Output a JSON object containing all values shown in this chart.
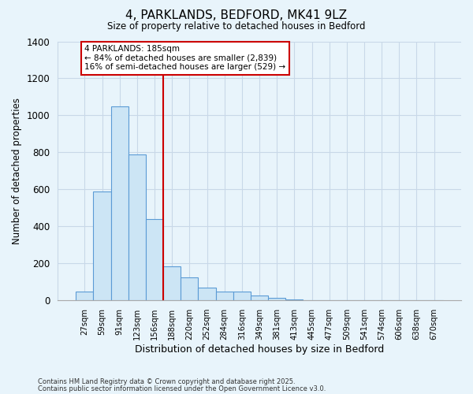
{
  "title": "4, PARKLANDS, BEDFORD, MK41 9LZ",
  "subtitle": "Size of property relative to detached houses in Bedford",
  "xlabel": "Distribution of detached houses by size in Bedford",
  "ylabel": "Number of detached properties",
  "bar_labels": [
    "27sqm",
    "59sqm",
    "91sqm",
    "123sqm",
    "156sqm",
    "188sqm",
    "220sqm",
    "252sqm",
    "284sqm",
    "316sqm",
    "349sqm",
    "381sqm",
    "413sqm",
    "445sqm",
    "477sqm",
    "509sqm",
    "541sqm",
    "574sqm",
    "606sqm",
    "638sqm",
    "670sqm"
  ],
  "bar_values": [
    50,
    590,
    1050,
    790,
    440,
    185,
    125,
    70,
    50,
    50,
    25,
    15,
    5,
    2,
    1,
    0,
    0,
    0,
    0,
    0,
    3
  ],
  "bar_color": "#cce5f5",
  "bar_edge_color": "#5b9bd5",
  "vline_color": "#cc0000",
  "annotation_title": "4 PARKLANDS: 185sqm",
  "annotation_line1": "← 84% of detached houses are smaller (2,839)",
  "annotation_line2": "16% of semi-detached houses are larger (529) →",
  "annotation_box_color": "#ffffff",
  "annotation_box_edge": "#cc0000",
  "ylim": [
    0,
    1400
  ],
  "grid_color": "#c8d8e8",
  "footer1": "Contains HM Land Registry data © Crown copyright and database right 2025.",
  "footer2": "Contains public sector information licensed under the Open Government Licence v3.0.",
  "background_color": "#e8f4fb"
}
